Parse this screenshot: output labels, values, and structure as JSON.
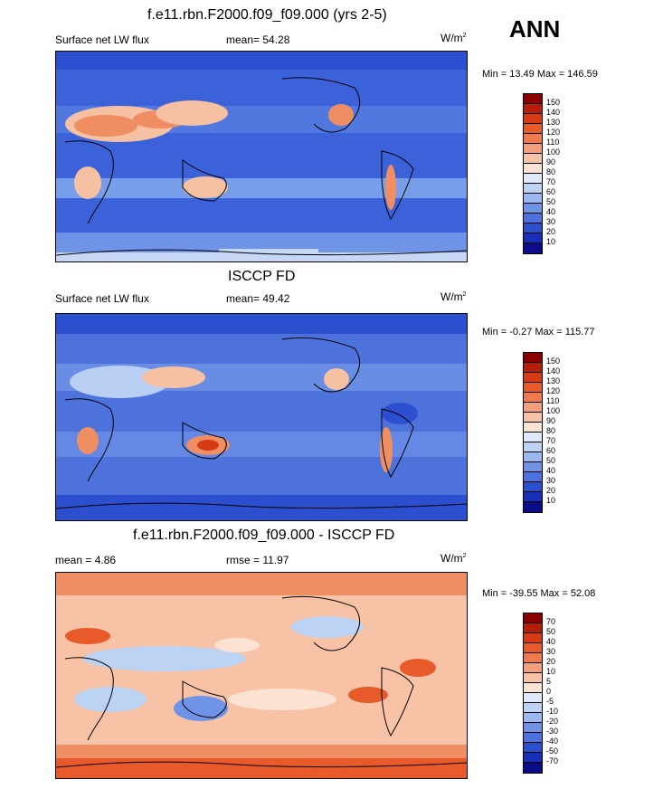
{
  "season": "ANN",
  "units_base": "W/m",
  "units_exp": "2",
  "panels": [
    {
      "title": "f.e11.rbn.F2000.f09_f09.000 (yrs 2-5)",
      "left_label": "Surface net LW flux",
      "center_label": "mean=  54.28",
      "minmax": "Min =  13.49 Max = 146.59",
      "colorbar": {
        "levels": [
          "150",
          "140",
          "130",
          "120",
          "110",
          "100",
          "90",
          "80",
          "70",
          "60",
          "50",
          "40",
          "30",
          "20",
          "10"
        ],
        "colors": [
          "#8b0000",
          "#b81d0b",
          "#d63a15",
          "#e85a2a",
          "#ef7a4d",
          "#f49f7c",
          "#f7c2a6",
          "#fbe2d2",
          "#dfe9f8",
          "#bcd3f3",
          "#9ab9ee",
          "#6f93e6",
          "#4d72dc",
          "#2c4fcf",
          "#1a2fb8",
          "#0a0c8a"
        ]
      }
    },
    {
      "title": "ISCCP FD",
      "left_label": "Surface net LW flux",
      "center_label": "mean=  49.42",
      "minmax": "Min =  -0.27 Max = 115.77",
      "colorbar": {
        "levels": [
          "150",
          "140",
          "130",
          "120",
          "110",
          "100",
          "90",
          "80",
          "70",
          "60",
          "50",
          "40",
          "30",
          "20",
          "10"
        ],
        "colors": [
          "#8b0000",
          "#b81d0b",
          "#d63a15",
          "#e85a2a",
          "#ef7a4d",
          "#f49f7c",
          "#f7c2a6",
          "#fbe2d2",
          "#dfe9f8",
          "#bcd3f3",
          "#9ab9ee",
          "#6f93e6",
          "#4d72dc",
          "#2c4fcf",
          "#1a2fb8",
          "#0a0c8a"
        ]
      }
    },
    {
      "title": "f.e11.rbn.F2000.f09_f09.000 - ISCCP FD",
      "left_label": "mean =  4.86",
      "center_label": "rmse =  11.97",
      "minmax": "Min = -39.55 Max =  52.08",
      "colorbar": {
        "levels": [
          "70",
          "50",
          "40",
          "30",
          "20",
          "10",
          "5",
          "0",
          "-5",
          "-10",
          "-20",
          "-30",
          "-40",
          "-50",
          "-70"
        ],
        "colors": [
          "#8b0000",
          "#b81d0b",
          "#d63a15",
          "#e85a2a",
          "#ef7a4d",
          "#f49f7c",
          "#f7c2a6",
          "#fbe2d2",
          "#dfe9f8",
          "#bcd3f3",
          "#9ab9ee",
          "#6f93e6",
          "#4d72dc",
          "#2c4fcf",
          "#1a2fb8",
          "#0a0c8a"
        ]
      }
    }
  ],
  "map_palette": {
    "panel1": [
      "#3b62d8",
      "#5a82e2",
      "#8aaeee",
      "#c6d8f5",
      "#f6c0a2",
      "#ef8d63",
      "#e0502a"
    ],
    "panel2": [
      "#2c4fcf",
      "#4d72dc",
      "#7598e8",
      "#b8cff3",
      "#f6c0a2",
      "#ef8d63",
      "#d63a15"
    ],
    "panel3": [
      "#6f93e6",
      "#bcd3f3",
      "#fbe2d2",
      "#f7c2a6",
      "#ef8d63",
      "#e85a2a"
    ]
  }
}
